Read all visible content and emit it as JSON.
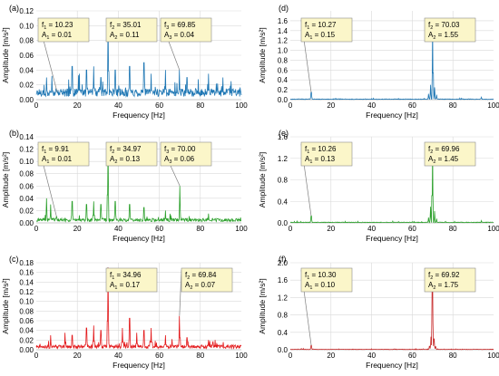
{
  "chart_data": [
    {
      "id": "a",
      "type": "line",
      "panel_label": "(a)",
      "xlabel": "Frequency [Hz]",
      "ylabel": "Amplitude [m/s²]",
      "xlim": [
        0,
        100
      ],
      "ylim": [
        0,
        0.12
      ],
      "xticks": [
        "0",
        "20",
        "40",
        "60",
        "80",
        "100"
      ],
      "yticks": [
        "0.00",
        "0.02",
        "0.04",
        "0.06",
        "0.08",
        "0.10",
        "0.12"
      ],
      "grid": true,
      "color": "#1f77b4",
      "base_noise": 0.012,
      "peaks": [
        {
          "f": 10.23,
          "A": 0.01
        },
        {
          "f": 35.01,
          "A": 0.11
        },
        {
          "f": 69.85,
          "A": 0.04
        },
        {
          "f": 5.0,
          "A": 0.03
        },
        {
          "f": 17.5,
          "A": 0.045
        },
        {
          "f": 21.0,
          "A": 0.035
        },
        {
          "f": 24.5,
          "A": 0.04
        },
        {
          "f": 28.0,
          "A": 0.045
        },
        {
          "f": 31.5,
          "A": 0.03
        },
        {
          "f": 38.5,
          "A": 0.04
        },
        {
          "f": 45.5,
          "A": 0.045
        },
        {
          "f": 52.5,
          "A": 0.05
        },
        {
          "f": 56.0,
          "A": 0.035
        },
        {
          "f": 63.0,
          "A": 0.04
        },
        {
          "f": 73.5,
          "A": 0.03
        },
        {
          "f": 84.0,
          "A": 0.035
        },
        {
          "f": 91.0,
          "A": 0.03
        },
        {
          "f": 95.0,
          "A": 0.025
        }
      ],
      "annotations": [
        {
          "f_label": "f",
          "f_sub": "1",
          "f_value": "10.23",
          "a_label": "A",
          "a_sub": "1",
          "a_value": "0.01",
          "target_f": 10.23,
          "target_A": 0.01
        },
        {
          "f_label": "f",
          "f_sub": "2",
          "f_value": "35.01",
          "a_label": "A",
          "a_sub": "2",
          "a_value": "0.11",
          "target_f": 35.01,
          "target_A": 0.11
        },
        {
          "f_label": "f",
          "f_sub": "3",
          "f_value": "69.85",
          "a_label": "A",
          "a_sub": "3",
          "a_value": "0.04",
          "target_f": 69.85,
          "target_A": 0.04
        }
      ]
    },
    {
      "id": "b",
      "type": "line",
      "panel_label": "(b)",
      "xlabel": "Frequency [Hz]",
      "ylabel": "Amplitude [m/s²]",
      "xlim": [
        0,
        100
      ],
      "ylim": [
        0,
        0.14
      ],
      "xticks": [
        "0",
        "20",
        "40",
        "60",
        "80",
        "100"
      ],
      "yticks": [
        "0.00",
        "0.02",
        "0.04",
        "0.06",
        "0.08",
        "0.10",
        "0.12",
        "0.14"
      ],
      "grid": true,
      "color": "#2ca02c",
      "base_noise": 0.006,
      "peaks": [
        {
          "f": 9.91,
          "A": 0.01
        },
        {
          "f": 34.97,
          "A": 0.13
        },
        {
          "f": 70.0,
          "A": 0.06
        },
        {
          "f": 5.0,
          "A": 0.04
        },
        {
          "f": 7.0,
          "A": 0.03
        },
        {
          "f": 17.5,
          "A": 0.035
        },
        {
          "f": 24.5,
          "A": 0.03
        },
        {
          "f": 28.0,
          "A": 0.035
        },
        {
          "f": 31.5,
          "A": 0.03
        },
        {
          "f": 38.5,
          "A": 0.035
        },
        {
          "f": 45.5,
          "A": 0.03
        },
        {
          "f": 52.5,
          "A": 0.025
        },
        {
          "f": 63.0,
          "A": 0.02
        },
        {
          "f": 84.0,
          "A": 0.015
        }
      ],
      "annotations": [
        {
          "f_label": "f",
          "f_sub": "1",
          "f_value": "9.91",
          "a_label": "A",
          "a_sub": "1",
          "a_value": "0.01",
          "target_f": 9.91,
          "target_A": 0.01
        },
        {
          "f_label": "f",
          "f_sub": "2",
          "f_value": "34.97",
          "a_label": "A",
          "a_sub": "2",
          "a_value": "0.13",
          "target_f": 34.97,
          "target_A": 0.13
        },
        {
          "f_label": "f",
          "f_sub": "3",
          "f_value": "70.00",
          "a_label": "A",
          "a_sub": "3",
          "a_value": "0.06",
          "target_f": 70.0,
          "target_A": 0.06
        }
      ]
    },
    {
      "id": "c",
      "type": "line",
      "panel_label": "(c)",
      "xlabel": "Frequency [Hz]",
      "ylabel": "Amplitude [m/s²]",
      "xlim": [
        0,
        100
      ],
      "ylim": [
        0,
        0.18
      ],
      "xticks": [
        "0",
        "20",
        "40",
        "60",
        "80",
        "100"
      ],
      "yticks": [
        "0.00",
        "0.02",
        "0.04",
        "0.06",
        "0.08",
        "0.10",
        "0.12",
        "0.14",
        "0.16",
        "0.18"
      ],
      "grid": true,
      "color": "#e31a1c",
      "base_noise": 0.008,
      "peaks": [
        {
          "f": 34.96,
          "A": 0.17
        },
        {
          "f": 69.84,
          "A": 0.07
        },
        {
          "f": 7.0,
          "A": 0.03
        },
        {
          "f": 14.0,
          "A": 0.035
        },
        {
          "f": 17.5,
          "A": 0.03
        },
        {
          "f": 24.5,
          "A": 0.045
        },
        {
          "f": 28.0,
          "A": 0.05
        },
        {
          "f": 31.5,
          "A": 0.04
        },
        {
          "f": 42.0,
          "A": 0.045
        },
        {
          "f": 45.5,
          "A": 0.065
        },
        {
          "f": 49.0,
          "A": 0.035
        },
        {
          "f": 52.5,
          "A": 0.04
        },
        {
          "f": 56.0,
          "A": 0.045
        },
        {
          "f": 63.0,
          "A": 0.03
        },
        {
          "f": 73.5,
          "A": 0.025
        },
        {
          "f": 84.0,
          "A": 0.02
        }
      ],
      "annotations": [
        {
          "f_label": "f",
          "f_sub": "1",
          "f_value": "34.96",
          "a_label": "A",
          "a_sub": "1",
          "a_value": "0.17",
          "target_f": 34.96,
          "target_A": 0.17
        },
        {
          "f_label": "f",
          "f_sub": "2",
          "f_value": "69.84",
          "a_label": "A",
          "a_sub": "2",
          "a_value": "0.07",
          "target_f": 69.84,
          "target_A": 0.07
        }
      ]
    },
    {
      "id": "d",
      "type": "line",
      "panel_label": "(d)",
      "xlabel": "Frequency [Hz]",
      "ylabel": "Amplitude [m/s²]",
      "xlim": [
        0,
        100
      ],
      "ylim": [
        0,
        1.8
      ],
      "xticks": [
        "0",
        "20",
        "40",
        "60",
        "80",
        "100"
      ],
      "yticks": [
        "0.0",
        "0.2",
        "0.4",
        "0.6",
        "0.8",
        "1.0",
        "1.2",
        "1.4",
        "1.6"
      ],
      "grid": true,
      "color": "#1f77b4",
      "base_noise": 0.012,
      "peaks": [
        {
          "f": 10.27,
          "A": 0.15
        },
        {
          "f": 70.03,
          "A": 1.55
        },
        {
          "f": 69.0,
          "A": 0.3
        },
        {
          "f": 71.0,
          "A": 0.25
        },
        {
          "f": 68.0,
          "A": 0.12
        },
        {
          "f": 72.0,
          "A": 0.1
        },
        {
          "f": 94.0,
          "A": 0.05
        },
        {
          "f": 40.0,
          "A": 0.02
        }
      ],
      "annotations": [
        {
          "f_label": "f",
          "f_sub": "1",
          "f_value": "10.27",
          "a_label": "A",
          "a_sub": "1",
          "a_value": "0.15",
          "target_f": 10.27,
          "target_A": 0.15
        },
        {
          "f_label": "f",
          "f_sub": "2",
          "f_value": "70.03",
          "a_label": "A",
          "a_sub": "2",
          "a_value": "1.55",
          "target_f": 70.03,
          "target_A": 1.55
        }
      ]
    },
    {
      "id": "e",
      "type": "line",
      "panel_label": "(e)",
      "xlabel": "Frequency [Hz]",
      "ylabel": "Amplitude [m/s²]",
      "xlim": [
        0,
        100
      ],
      "ylim": [
        0,
        1.6
      ],
      "xticks": [
        "0",
        "20",
        "40",
        "60",
        "80",
        "100"
      ],
      "yticks": [
        "0.0",
        "0.4",
        "0.8",
        "1.2",
        "1.6"
      ],
      "grid": true,
      "color": "#2ca02c",
      "base_noise": 0.012,
      "peaks": [
        {
          "f": 10.26,
          "A": 0.13
        },
        {
          "f": 69.96,
          "A": 1.45
        },
        {
          "f": 69.0,
          "A": 0.3
        },
        {
          "f": 71.0,
          "A": 0.22
        },
        {
          "f": 68.0,
          "A": 0.1
        },
        {
          "f": 72.0,
          "A": 0.08
        },
        {
          "f": 94.0,
          "A": 0.04
        }
      ],
      "annotations": [
        {
          "f_label": "f",
          "f_sub": "1",
          "f_value": "10.26",
          "a_label": "A",
          "a_sub": "1",
          "a_value": "0.13",
          "target_f": 10.26,
          "target_A": 0.13
        },
        {
          "f_label": "f",
          "f_sub": "2",
          "f_value": "69.96",
          "a_label": "A",
          "a_sub": "2",
          "a_value": "1.45",
          "target_f": 69.96,
          "target_A": 1.45
        }
      ]
    },
    {
      "id": "f",
      "type": "line",
      "panel_label": "(f)",
      "xlabel": "Frequency [Hz]",
      "ylabel": "Amplitude [m/s²]",
      "xlim": [
        0,
        100
      ],
      "ylim": [
        0,
        2.0
      ],
      "xticks": [
        "0",
        "20",
        "40",
        "60",
        "80",
        "100"
      ],
      "yticks": [
        "0.0",
        "0.4",
        "0.8",
        "1.2",
        "1.6",
        "2.0"
      ],
      "grid": true,
      "color": "#c62828",
      "base_noise": 0.01,
      "peaks": [
        {
          "f": 10.3,
          "A": 0.1
        },
        {
          "f": 69.92,
          "A": 1.75
        },
        {
          "f": 69.2,
          "A": 0.3
        },
        {
          "f": 70.7,
          "A": 0.25
        },
        {
          "f": 68.5,
          "A": 0.08
        },
        {
          "f": 71.5,
          "A": 0.07
        }
      ],
      "annotations": [
        {
          "f_label": "f",
          "f_sub": "1",
          "f_value": "10.30",
          "a_label": "A",
          "a_sub": "1",
          "a_value": "0.10",
          "target_f": 10.3,
          "target_A": 0.1
        },
        {
          "f_label": "f",
          "f_sub": "2",
          "f_value": "69.92",
          "a_label": "A",
          "a_sub": "2",
          "a_value": "1.75",
          "target_f": 69.92,
          "target_A": 1.75
        }
      ]
    }
  ]
}
